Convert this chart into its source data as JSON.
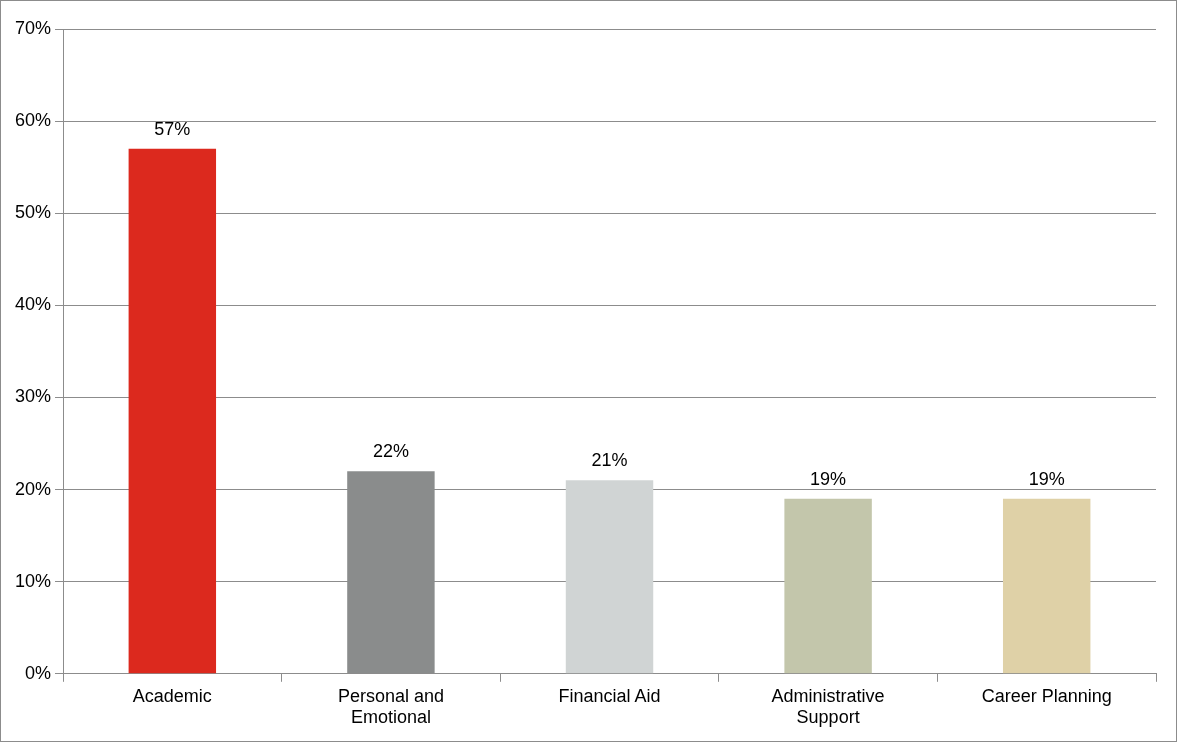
{
  "chart_data": {
    "type": "bar",
    "categories": [
      "Academic",
      "Personal and Emotional",
      "Financial Aid",
      "Administrative Support",
      "Career Planning"
    ],
    "values": [
      57,
      22,
      21,
      19,
      19
    ],
    "colors": [
      "#dc291e",
      "#8a8c8c",
      "#d0d4d4",
      "#c3c6ab",
      "#dfd1a7"
    ],
    "value_labels": [
      "57%",
      "22%",
      "21%",
      "19%",
      "19%"
    ],
    "ylim": [
      0,
      70
    ],
    "yticks": [
      {
        "value": 0,
        "label": "0%"
      },
      {
        "value": 10,
        "label": "10%"
      },
      {
        "value": 20,
        "label": "20%"
      },
      {
        "value": 30,
        "label": "30%"
      },
      {
        "value": 40,
        "label": "40%"
      },
      {
        "value": 50,
        "label": "50%"
      },
      {
        "value": 60,
        "label": "60%"
      },
      {
        "value": 70,
        "label": "70%"
      }
    ],
    "grid": "y",
    "legend": false
  }
}
